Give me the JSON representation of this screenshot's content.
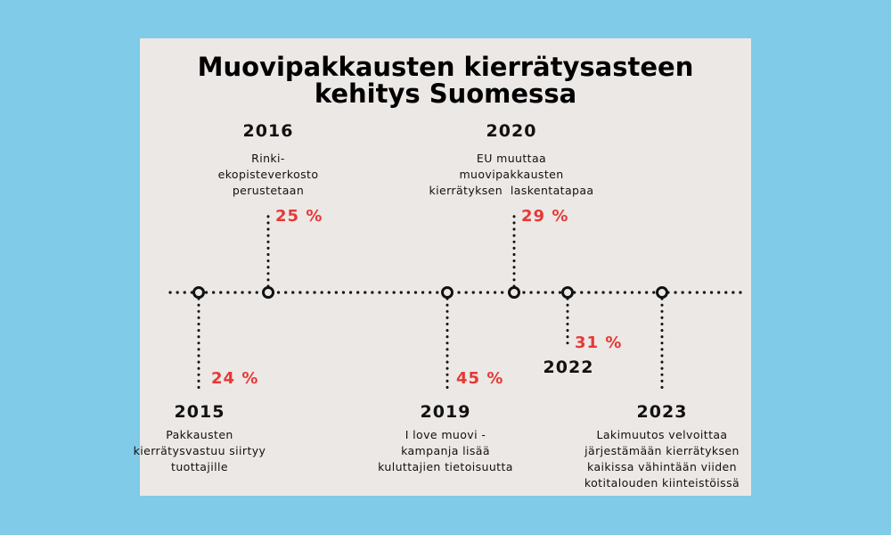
{
  "title_lines": [
    "Muovipakkausten kierrätysasteen",
    "kehitys Suomessa"
  ],
  "colors": {
    "background": "#7fcbe8",
    "card": "#ece8e6",
    "percent": "#e53935",
    "line": "#111111"
  },
  "events": [
    {
      "year": "2015",
      "percent": "24 %",
      "description": [
        "Pakkausten",
        "kierrätysvastuu siirtyy",
        "tuottajille"
      ]
    },
    {
      "year": "2016",
      "percent": "25 %",
      "description": [
        "Rinki-",
        "ekopisteverkosto",
        "perustetaan"
      ]
    },
    {
      "year": "2019",
      "percent": "45 %",
      "description": [
        "I love muovi -",
        "kampanja lisää",
        "kuluttajien tietoisuutta"
      ]
    },
    {
      "year": "2020",
      "percent": "29 %",
      "description": [
        "EU muuttaa",
        "muovipakkausten",
        "kierrätyksen  laskentatapaa"
      ]
    },
    {
      "year": "2022",
      "percent": "31 %",
      "description": []
    },
    {
      "year": "2023",
      "percent": "",
      "description": [
        "Lakimuutos velvoittaa",
        "järjestämään kierrätyksen",
        "kaikissa vähintään viiden",
        "kotitalouden kiinteistöissä"
      ]
    }
  ]
}
